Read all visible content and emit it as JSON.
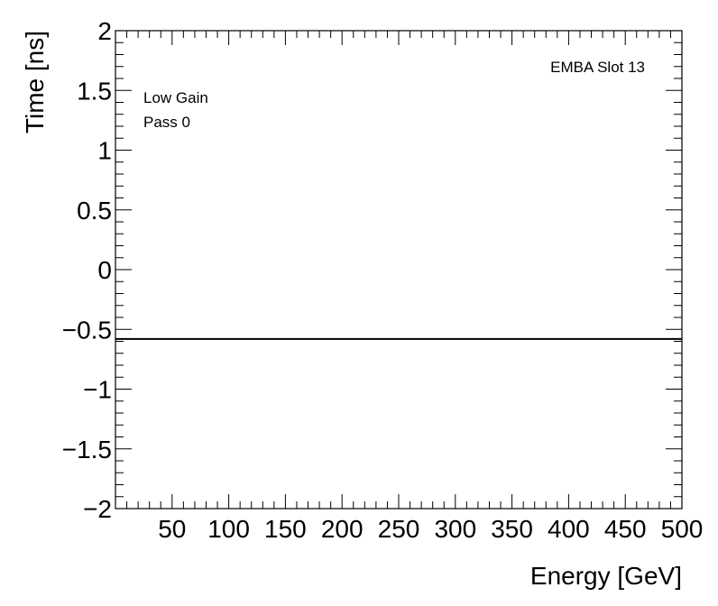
{
  "chart_data": {
    "type": "line",
    "title": "",
    "xlabel": "Energy [GeV]",
    "ylabel": "Time [ns]",
    "xlim": [
      0,
      500
    ],
    "ylim": [
      -2,
      2
    ],
    "x_ticks": [
      50,
      100,
      150,
      200,
      250,
      300,
      350,
      400,
      450,
      500
    ],
    "x_tick_labels": [
      "50",
      "100",
      "150",
      "200",
      "250",
      "300",
      "350",
      "400",
      "450",
      "500"
    ],
    "y_ticks": [
      -2,
      -1.5,
      -1,
      -0.5,
      0,
      0.5,
      1,
      1.5,
      2
    ],
    "y_tick_labels": [
      "−2",
      "−1.5",
      "−1",
      "−0.5",
      "0",
      "0.5",
      "1",
      "1.5",
      "2"
    ],
    "x_minor_step": 10,
    "y_minor_step": 0.1,
    "grid": false,
    "series": [
      {
        "x": [
          0,
          500
        ],
        "y": [
          -0.58,
          -0.58
        ],
        "color": "#000000"
      }
    ],
    "annotations": {
      "top_right": "EMBA Slot 13",
      "top_left": [
        "Low Gain",
        "Pass 0"
      ]
    }
  }
}
